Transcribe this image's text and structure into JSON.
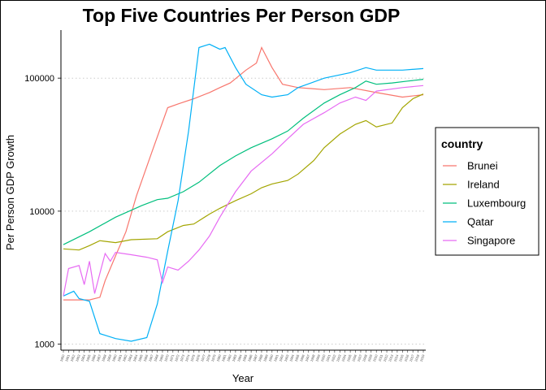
{
  "chart_data": {
    "type": "line",
    "title": "Top Five Countries Per Person GDP",
    "xlabel": "Year",
    "ylabel": "Per Person GDP Growth",
    "y_scale": "log10",
    "ylim": [
      900,
      230000
    ],
    "xlim": [
      1950,
      2019
    ],
    "y_ticks": [
      1000,
      10000,
      100000
    ],
    "y_tick_labels": [
      "1000",
      "10000",
      "100000"
    ],
    "grid": "horizontal dotted",
    "legend": {
      "title": "country",
      "position": "right"
    },
    "x": [
      1950,
      1960,
      1970,
      1980,
      1990,
      2000,
      2010,
      2019
    ],
    "series": [
      {
        "name": "Brunei",
        "color": "#F8766D",
        "points": [
          [
            1950,
            2150
          ],
          [
            1955,
            2150
          ],
          [
            1957,
            2250
          ],
          [
            1958,
            3000
          ],
          [
            1960,
            4600
          ],
          [
            1962,
            7000
          ],
          [
            1964,
            13000
          ],
          [
            1967,
            28000
          ],
          [
            1970,
            60000
          ],
          [
            1972,
            64000
          ],
          [
            1975,
            70000
          ],
          [
            1978,
            78000
          ],
          [
            1980,
            85000
          ],
          [
            1982,
            92000
          ],
          [
            1985,
            115000
          ],
          [
            1987,
            130000
          ],
          [
            1988,
            170000
          ],
          [
            1990,
            120000
          ],
          [
            1992,
            90000
          ],
          [
            1995,
            85000
          ],
          [
            2000,
            82000
          ],
          [
            2005,
            85000
          ],
          [
            2010,
            78000
          ],
          [
            2015,
            72000
          ],
          [
            2019,
            75000
          ]
        ]
      },
      {
        "name": "Ireland",
        "color": "#A3A500",
        "points": [
          [
            1950,
            5200
          ],
          [
            1953,
            5100
          ],
          [
            1955,
            5500
          ],
          [
            1957,
            6000
          ],
          [
            1960,
            5800
          ],
          [
            1963,
            6100
          ],
          [
            1968,
            6200
          ],
          [
            1970,
            7000
          ],
          [
            1973,
            7800
          ],
          [
            1975,
            8000
          ],
          [
            1978,
            9500
          ],
          [
            1980,
            10500
          ],
          [
            1983,
            12000
          ],
          [
            1986,
            13500
          ],
          [
            1988,
            15000
          ],
          [
            1990,
            16000
          ],
          [
            1993,
            17000
          ],
          [
            1995,
            19000
          ],
          [
            1998,
            24000
          ],
          [
            2000,
            30000
          ],
          [
            2003,
            38000
          ],
          [
            2006,
            45000
          ],
          [
            2008,
            48000
          ],
          [
            2010,
            43000
          ],
          [
            2013,
            46000
          ],
          [
            2015,
            60000
          ],
          [
            2017,
            70000
          ],
          [
            2019,
            76000
          ]
        ]
      },
      {
        "name": "Luxembourg",
        "color": "#00BF7D",
        "points": [
          [
            1950,
            5600
          ],
          [
            1955,
            7000
          ],
          [
            1960,
            9000
          ],
          [
            1965,
            11000
          ],
          [
            1968,
            12200
          ],
          [
            1970,
            12500
          ],
          [
            1973,
            14000
          ],
          [
            1976,
            16500
          ],
          [
            1980,
            22000
          ],
          [
            1983,
            26000
          ],
          [
            1986,
            30000
          ],
          [
            1990,
            35000
          ],
          [
            1993,
            40000
          ],
          [
            1996,
            50000
          ],
          [
            2000,
            65000
          ],
          [
            2003,
            75000
          ],
          [
            2006,
            85000
          ],
          [
            2008,
            95000
          ],
          [
            2010,
            90000
          ],
          [
            2013,
            92000
          ],
          [
            2016,
            95000
          ],
          [
            2019,
            98000
          ]
        ]
      },
      {
        "name": "Qatar",
        "color": "#00B0F6",
        "points": [
          [
            1950,
            2300
          ],
          [
            1952,
            2500
          ],
          [
            1953,
            2200
          ],
          [
            1955,
            2100
          ],
          [
            1957,
            1200
          ],
          [
            1960,
            1100
          ],
          [
            1963,
            1050
          ],
          [
            1966,
            1120
          ],
          [
            1968,
            2000
          ],
          [
            1970,
            5000
          ],
          [
            1972,
            12000
          ],
          [
            1974,
            40000
          ],
          [
            1976,
            170000
          ],
          [
            1978,
            180000
          ],
          [
            1980,
            165000
          ],
          [
            1981,
            170000
          ],
          [
            1983,
            120000
          ],
          [
            1985,
            90000
          ],
          [
            1988,
            75000
          ],
          [
            1990,
            72000
          ],
          [
            1993,
            75000
          ],
          [
            1995,
            85000
          ],
          [
            2000,
            100000
          ],
          [
            2005,
            110000
          ],
          [
            2008,
            120000
          ],
          [
            2010,
            115000
          ],
          [
            2015,
            115000
          ],
          [
            2019,
            118000
          ]
        ]
      },
      {
        "name": "Singapore",
        "color": "#E76BF3",
        "points": [
          [
            1950,
            2300
          ],
          [
            1951,
            3700
          ],
          [
            1953,
            3900
          ],
          [
            1954,
            2800
          ],
          [
            1955,
            4200
          ],
          [
            1956,
            2400
          ],
          [
            1957,
            3400
          ],
          [
            1958,
            4800
          ],
          [
            1959,
            4200
          ],
          [
            1960,
            4900
          ],
          [
            1963,
            4700
          ],
          [
            1966,
            4500
          ],
          [
            1968,
            4300
          ],
          [
            1969,
            2900
          ],
          [
            1970,
            3800
          ],
          [
            1972,
            3600
          ],
          [
            1974,
            4200
          ],
          [
            1976,
            5100
          ],
          [
            1978,
            6500
          ],
          [
            1980,
            9000
          ],
          [
            1983,
            14000
          ],
          [
            1986,
            20000
          ],
          [
            1990,
            27000
          ],
          [
            1993,
            35000
          ],
          [
            1996,
            45000
          ],
          [
            2000,
            55000
          ],
          [
            2003,
            65000
          ],
          [
            2006,
            72000
          ],
          [
            2008,
            68000
          ],
          [
            2010,
            80000
          ],
          [
            2015,
            85000
          ],
          [
            2019,
            88000
          ]
        ]
      }
    ]
  }
}
